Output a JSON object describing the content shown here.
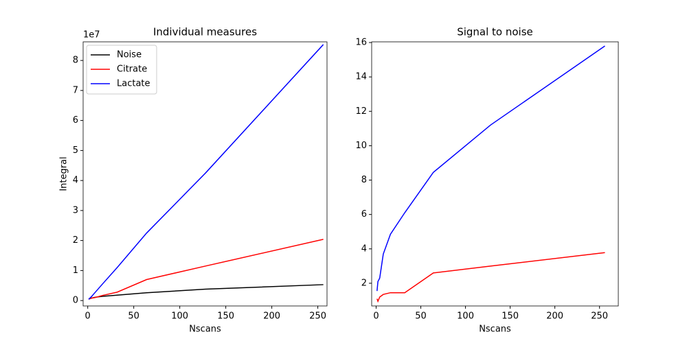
{
  "chart_data": [
    {
      "type": "line",
      "title": "Individual measures",
      "xlabel": "Nscans",
      "ylabel": "Integral",
      "y_offset_label": "1e7",
      "x": [
        1,
        2,
        4,
        8,
        16,
        32,
        64,
        128,
        256
      ],
      "series": [
        {
          "name": "Noise",
          "color": "#000000",
          "values": [
            0.05,
            0.06,
            0.08,
            0.11,
            0.14,
            0.18,
            0.26,
            0.38,
            0.53
          ]
        },
        {
          "name": "Citrate",
          "color": "#ff0000",
          "values": [
            0.05,
            0.06,
            0.08,
            0.1,
            0.17,
            0.28,
            0.7,
            1.15,
            2.04
          ]
        },
        {
          "name": "Lactate",
          "color": "#0000ff",
          "values": [
            0.04,
            0.07,
            0.13,
            0.27,
            0.55,
            1.1,
            2.25,
            4.25,
            8.53
          ]
        }
      ],
      "xlim": [
        -5,
        260
      ],
      "ylim": [
        -0.18,
        8.62
      ],
      "xticks": [
        0,
        50,
        100,
        150,
        200,
        250
      ],
      "yticks": [
        0,
        1,
        2,
        3,
        4,
        5,
        6,
        7,
        8
      ],
      "legend": "upper left"
    },
    {
      "type": "line",
      "title": "Signal to noise",
      "xlabel": "Nscans",
      "x": [
        1,
        2,
        4,
        8,
        16,
        32,
        64,
        128,
        256
      ],
      "series": [
        {
          "color": "#0000ff",
          "values": [
            1.55,
            2.1,
            2.3,
            3.7,
            4.85,
            6.1,
            8.45,
            11.2,
            15.8
          ]
        },
        {
          "color": "#ff0000",
          "values": [
            1.1,
            0.95,
            1.2,
            1.35,
            1.45,
            1.45,
            2.6,
            3.0,
            3.78
          ]
        }
      ],
      "xlim": [
        -5,
        271
      ],
      "ylim": [
        0.68,
        16.04
      ],
      "xticks": [
        0,
        50,
        100,
        150,
        200,
        250
      ],
      "yticks": [
        2,
        4,
        6,
        8,
        10,
        12,
        14,
        16
      ]
    }
  ]
}
